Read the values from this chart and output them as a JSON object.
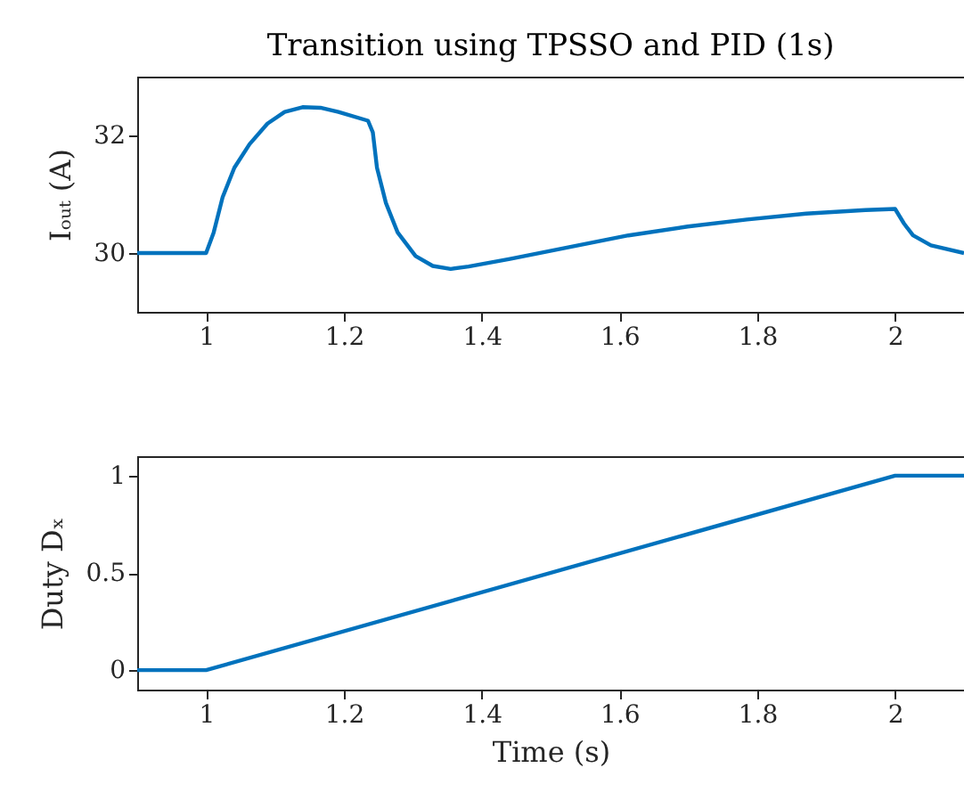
{
  "chart_data": [
    {
      "type": "line",
      "title": "Transition using TPSSO and PID (1s)",
      "ylabel": "Iₒᵤₜ (A)",
      "color": "#0072bd",
      "x": [
        0.9,
        1.0,
        1.011,
        1.024,
        1.041,
        1.063,
        1.089,
        1.114,
        1.14,
        1.166,
        1.192,
        1.235,
        1.242,
        1.248,
        1.261,
        1.278,
        1.304,
        1.329,
        1.355,
        1.381,
        1.441,
        1.527,
        1.613,
        1.699,
        1.785,
        1.871,
        1.957,
        2.0,
        2.013,
        2.026,
        2.052,
        2.1
      ],
      "values": [
        30,
        30,
        30.35,
        30.95,
        31.45,
        31.85,
        32.2,
        32.4,
        32.48,
        32.47,
        32.4,
        32.25,
        32.05,
        31.45,
        30.85,
        30.35,
        29.95,
        29.78,
        29.73,
        29.77,
        29.9,
        30.1,
        30.3,
        30.45,
        30.57,
        30.67,
        30.73,
        30.75,
        30.5,
        30.3,
        30.13,
        30.0
      ],
      "xlim": [
        0.9,
        2.1
      ],
      "xticks": [
        1,
        1.2,
        1.4,
        1.6,
        1.8,
        2
      ],
      "ylim": [
        29,
        33
      ],
      "yticks": [
        30,
        32
      ]
    },
    {
      "type": "line",
      "xlabel": "Time (s)",
      "ylabel": "Duty Dₓ",
      "color": "#0072bd",
      "x": [
        0.9,
        1,
        2,
        2.1
      ],
      "values": [
        0,
        0,
        1,
        1
      ],
      "xlim": [
        0.9,
        2.1
      ],
      "xticks": [
        1,
        1.2,
        1.4,
        1.6,
        1.8,
        2
      ],
      "ylim": [
        -0.1,
        1.1
      ],
      "yticks": [
        0,
        0.5,
        1
      ]
    }
  ]
}
